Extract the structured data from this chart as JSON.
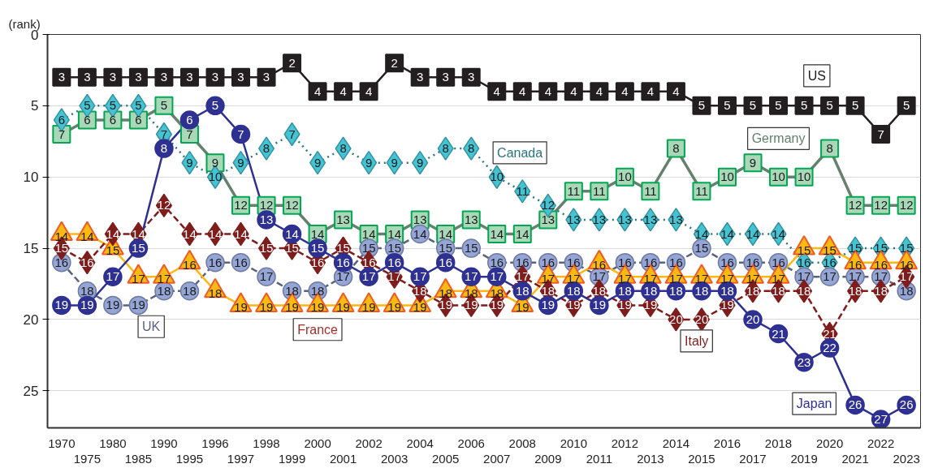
{
  "chart_data": {
    "type": "line",
    "ylabel": "(rank)",
    "categories": [
      "1970",
      "1975",
      "1980",
      "1985",
      "1990",
      "1995",
      "1996",
      "1997",
      "1998",
      "1999",
      "2000",
      "2001",
      "2002",
      "2003",
      "2004",
      "2005",
      "2006",
      "2007",
      "2008",
      "2009",
      "2010",
      "2011",
      "2012",
      "2013",
      "2014",
      "2015",
      "2016",
      "2017",
      "2018",
      "2019",
      "2020",
      "2021",
      "2022",
      "2023"
    ],
    "ylim": [
      27.6,
      0
    ],
    "yticks": [
      0,
      5,
      10,
      15,
      20,
      25
    ],
    "grid": "y",
    "legend": false,
    "data_labels": true,
    "series": [
      {
        "name": "US",
        "color": "#231f20",
        "marker": "square",
        "line_style": "solid",
        "values": [
          3,
          3,
          3,
          3,
          3,
          3,
          3,
          3,
          3,
          2,
          4,
          4,
          4,
          2,
          3,
          3,
          3,
          4,
          4,
          4,
          4,
          4,
          4,
          4,
          4,
          5,
          5,
          5,
          5,
          5,
          5,
          5,
          7,
          5
        ]
      },
      {
        "name": "Germany",
        "color": "#a8d8b8",
        "marker": "square",
        "line_style": "solid",
        "values": [
          7,
          6,
          6,
          6,
          5,
          7,
          9,
          12,
          12,
          12,
          14,
          13,
          14,
          14,
          13,
          14,
          13,
          14,
          14,
          13,
          11,
          11,
          10,
          11,
          8,
          11,
          10,
          9,
          10,
          10,
          8,
          12,
          12,
          12
        ]
      },
      {
        "name": "Canada",
        "color": "#45c3d3",
        "marker": "diamond",
        "line_style": "dotted",
        "values": [
          6,
          5,
          5,
          5,
          7,
          9,
          10,
          9,
          8,
          7,
          9,
          8,
          9,
          9,
          9,
          8,
          8,
          10,
          11,
          12,
          13,
          13,
          13,
          13,
          13,
          14,
          14,
          14,
          14,
          16,
          16,
          15,
          15,
          15
        ]
      },
      {
        "name": "UK",
        "color": "#95a5d6",
        "marker": "circle",
        "line_style": "dashed",
        "values": [
          16,
          18,
          19,
          19,
          18,
          18,
          16,
          16,
          17,
          18,
          18,
          17,
          15,
          15,
          14,
          15,
          15,
          16,
          16,
          16,
          16,
          17,
          16,
          16,
          16,
          15,
          16,
          16,
          16,
          17,
          17,
          17,
          17,
          18
        ]
      },
      {
        "name": "France",
        "color": "#fdb913",
        "marker": "triangle",
        "line_style": "solid",
        "values": [
          14,
          14,
          15,
          17,
          17,
          16,
          18,
          19,
          19,
          19,
          19,
          19,
          19,
          19,
          19,
          18,
          18,
          18,
          19,
          17,
          17,
          16,
          17,
          17,
          17,
          17,
          17,
          17,
          17,
          15,
          15,
          16,
          16,
          16
        ]
      },
      {
        "name": "Italy",
        "color": "#7f1d1d",
        "marker": "diamond",
        "line_style": "dashed",
        "values": [
          15,
          16,
          14,
          14,
          12,
          14,
          14,
          14,
          15,
          15,
          16,
          15,
          16,
          17,
          18,
          19,
          19,
          19,
          17,
          18,
          19,
          18,
          19,
          19,
          20,
          20,
          19,
          18,
          18,
          18,
          21,
          18,
          18,
          17
        ]
      },
      {
        "name": "Japan",
        "color": "#2e3192",
        "marker": "circle",
        "line_style": "solid",
        "values": [
          19,
          19,
          17,
          15,
          8,
          6,
          5,
          7,
          13,
          14,
          15,
          16,
          17,
          16,
          17,
          16,
          17,
          17,
          18,
          19,
          18,
          19,
          18,
          18,
          18,
          18,
          18,
          20,
          21,
          23,
          22,
          26,
          27,
          26
        ]
      }
    ]
  }
}
